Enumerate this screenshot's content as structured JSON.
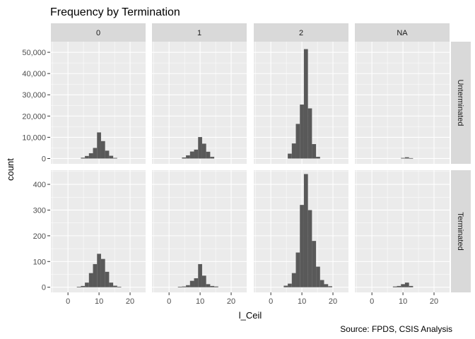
{
  "colors": {
    "panel_bg": "#EBEBEB",
    "strip_bg": "#D9D9D9",
    "grid_major": "#FFFFFF",
    "bar_fill": "#595959",
    "text": "#000000",
    "tick_text": "#4D4D4D"
  },
  "chart_data": {
    "type": "bar",
    "subtype": "faceted-histogram",
    "title": "Frequency by Termination",
    "xlabel": "l_Ceil",
    "ylabel": "count",
    "caption": "Source: FPDS, CSIS Analysis",
    "grid": true,
    "facet_cols": [
      "0",
      "1",
      "2",
      "NA"
    ],
    "facet_rows": [
      "Unterminated",
      "Terminated"
    ],
    "xlim": [
      -5.5,
      25
    ],
    "x_ticks": [
      0,
      10,
      20
    ],
    "x_tick_labels": [
      "0",
      "10",
      "20"
    ],
    "bin_width": 1.3,
    "bin_centers": [
      0.9,
      2.2,
      3.5,
      4.8,
      6.1,
      7.4,
      8.7,
      10.0,
      11.3,
      12.6,
      13.9,
      15.2,
      16.5,
      17.8,
      19.1,
      20.4,
      21.7,
      23.0
    ],
    "rows": [
      {
        "name": "Unterminated",
        "ylim": [
          -2500,
          55000
        ],
        "y_ticks": [
          0,
          10000,
          20000,
          30000,
          40000,
          50000
        ],
        "y_tick_labels": [
          "0",
          "10,000",
          "20,000",
          "30,000",
          "40,000",
          "50,000"
        ],
        "series": [
          {
            "name": "0",
            "values": [
              0,
              0,
              0,
              400,
              1200,
              2500,
              5000,
              12300,
              8200,
              3700,
              1300,
              300,
              0,
              0,
              0,
              0,
              0,
              0
            ]
          },
          {
            "name": "1",
            "values": [
              0,
              0,
              0,
              500,
              1500,
              3300,
              4200,
              10100,
              7000,
              3200,
              800,
              0,
              0,
              0,
              0,
              0,
              0,
              0
            ]
          },
          {
            "name": "2",
            "values": [
              0,
              0,
              0,
              0,
              2300,
              7100,
              16300,
              25400,
              51500,
              23600,
              6800,
              800,
              0,
              0,
              0,
              0,
              0,
              0
            ]
          },
          {
            "name": "NA",
            "values": [
              0,
              0,
              0,
              0,
              0,
              0,
              0,
              300,
              600,
              200,
              0,
              0,
              0,
              0,
              0,
              0,
              0,
              0
            ]
          }
        ]
      },
      {
        "name": "Terminated",
        "ylim": [
          -20,
          455
        ],
        "y_ticks": [
          0,
          100,
          200,
          300,
          400
        ],
        "y_tick_labels": [
          "0",
          "100",
          "200",
          "300",
          "400"
        ],
        "series": [
          {
            "name": "0",
            "values": [
              0,
              0,
              2,
              5,
              18,
              55,
              90,
              130,
              110,
              60,
              18,
              6,
              2,
              0,
              0,
              0,
              0,
              0
            ]
          },
          {
            "name": "1",
            "values": [
              0,
              0,
              2,
              3,
              8,
              25,
              35,
              90,
              45,
              12,
              5,
              3,
              0,
              0,
              0,
              0,
              0,
              0
            ]
          },
          {
            "name": "2",
            "values": [
              0,
              0,
              0,
              6,
              14,
              55,
              135,
              320,
              440,
              300,
              180,
              80,
              28,
              12,
              4,
              0,
              0,
              0
            ]
          },
          {
            "name": "NA",
            "values": [
              0,
              0,
              0,
              0,
              0,
              3,
              5,
              12,
              18,
              5,
              0,
              0,
              0,
              0,
              0,
              0,
              0,
              0
            ]
          }
        ]
      }
    ]
  }
}
